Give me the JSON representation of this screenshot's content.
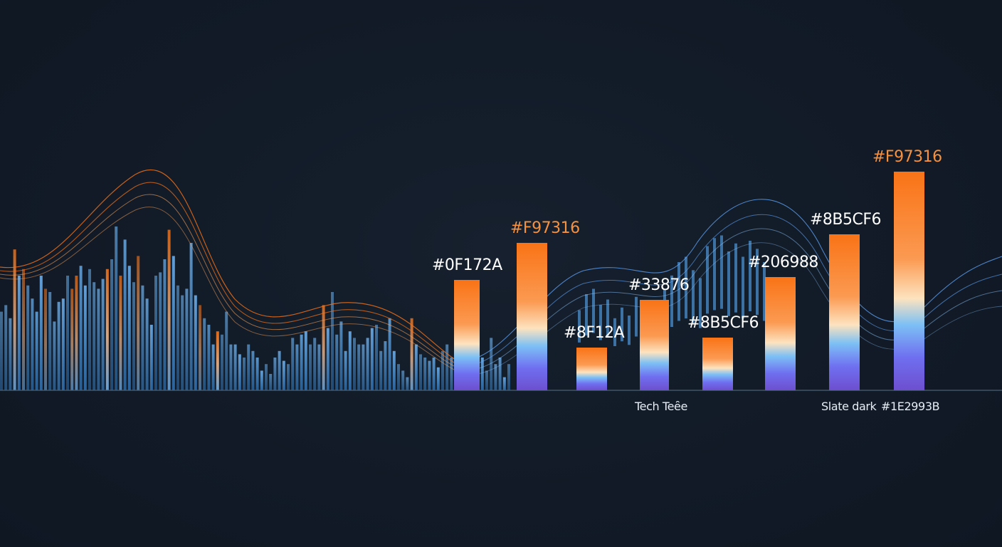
{
  "chart_data": {
    "type": "bar",
    "title": "",
    "xlabel": "",
    "ylabel": "",
    "ylim": [
      0,
      330
    ],
    "grid": false,
    "legend": "none",
    "bars": [
      {
        "label": "#0F172A",
        "value": 155,
        "label_color": "#ffffff"
      },
      {
        "label": "#F97316",
        "value": 207,
        "label_color": "#f5913f"
      },
      {
        "label": "#8F12A",
        "value": 60,
        "label_color": "#ffffff"
      },
      {
        "label": "#33876",
        "value": 127,
        "label_color": "#ffffff"
      },
      {
        "label": "#8B5CF6",
        "value": 74,
        "label_color": "#ffffff"
      },
      {
        "label": "#206988",
        "value": 159,
        "label_color": "#ffffff"
      },
      {
        "label": "#8B5CF6",
        "value": 219,
        "label_color": "#ffffff"
      },
      {
        "label": "#F97316",
        "value": 307,
        "label_color": "#f5913f"
      }
    ],
    "background_series": [
      120,
      130,
      110,
      215,
      175,
      185,
      160,
      140,
      120,
      175,
      155,
      150,
      105,
      135,
      140,
      175,
      155,
      175,
      190,
      160,
      185,
      165,
      155,
      170,
      185,
      200,
      250,
      175,
      230,
      190,
      165,
      205,
      160,
      140,
      100,
      175,
      180,
      200,
      245,
      205,
      160,
      145,
      155,
      225,
      145,
      130,
      110,
      100,
      70,
      90,
      85,
      120,
      70,
      70,
      55,
      50,
      70,
      60,
      50,
      30,
      40,
      25,
      50,
      60,
      45,
      40,
      80,
      70,
      85,
      90,
      70,
      80,
      70,
      130,
      95,
      150,
      85,
      105,
      60,
      90,
      80,
      70,
      70,
      80,
      95,
      100,
      60,
      75,
      110,
      60,
      40,
      30,
      20,
      110,
      70,
      55,
      50,
      45,
      50,
      35,
      60,
      70,
      50,
      40,
      30,
      50,
      110,
      60,
      80,
      50,
      30,
      80,
      40,
      50,
      20,
      40
    ],
    "colors": {
      "background": "#111a26",
      "orange": "#f97316",
      "cream": "#fde3bf",
      "sky": "#60a5fa",
      "violet": "#6d4fcf",
      "axis": "#4a6075"
    }
  },
  "footer": {
    "label_1": "Tech Teȇe",
    "label_2": "Slate dark",
    "label_3": "#1E2993B"
  }
}
